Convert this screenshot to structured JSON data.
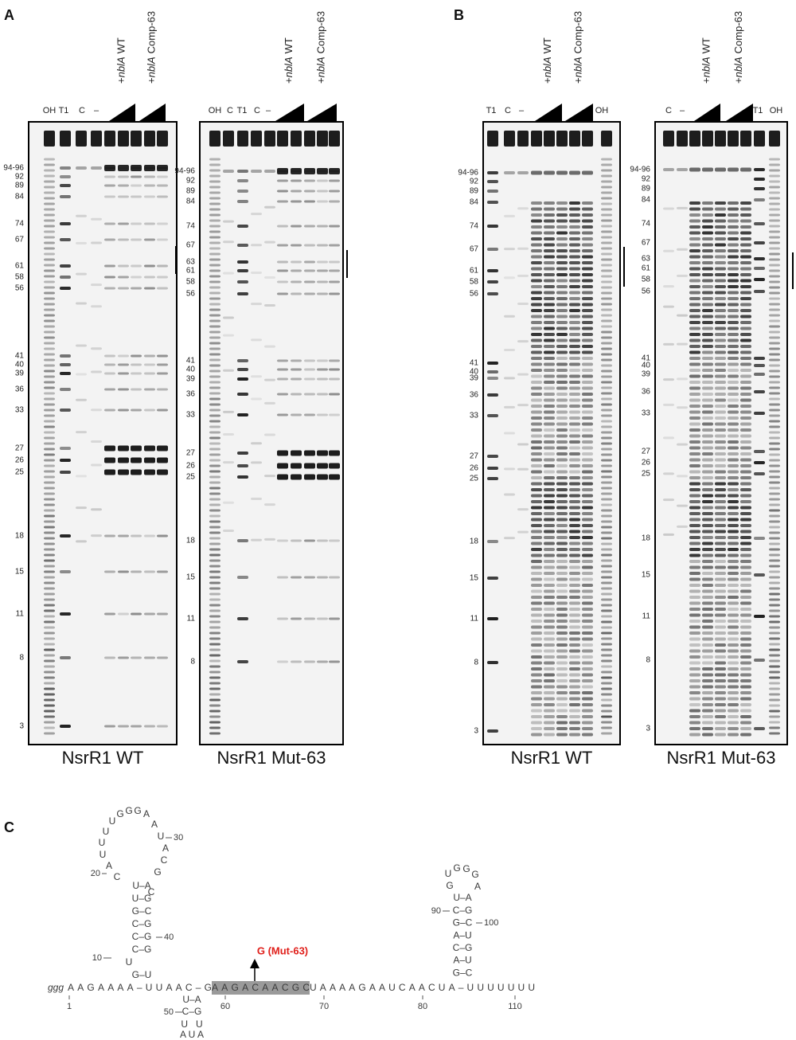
{
  "figure": {
    "panels": [
      {
        "letter": "A",
        "gels": [
          {
            "caption": "NsrR1 WT",
            "lanes": [
              "OH",
              "T1",
              "C",
              "–",
              {
                "prefix": "+",
                "gene": "nblA",
                "suffix": "WT"
              },
              {
                "prefix": "+",
                "gene": "nblA",
                "suffix": "Comp-63"
              }
            ],
            "markers": [
              "94-96",
              "92",
              "89",
              "84",
              "74",
              "67",
              "61",
              "58",
              "56",
              "41",
              "40",
              "39",
              "36",
              "33",
              "27",
              "26",
              "25",
              "18",
              "15",
              "11",
              "8",
              "3"
            ]
          },
          {
            "caption": "NsrR1 Mut-63",
            "lanes": [
              "OH",
              "C",
              "T1",
              "C",
              "–",
              {
                "prefix": "+",
                "gene": "nblA",
                "suffix": "WT"
              },
              {
                "prefix": "+",
                "gene": "nblA",
                "suffix": "Comp-63"
              }
            ],
            "markers": [
              "94-96",
              "92",
              "89",
              "84",
              "74",
              "67",
              {
                "label": "63",
                "color": "#e0201b"
              },
              "61",
              "58",
              "56",
              "41",
              "40",
              "39",
              "36",
              "33",
              "27",
              "26",
              "25",
              "18",
              "15",
              "11",
              "8"
            ]
          }
        ]
      },
      {
        "letter": "B",
        "gels": [
          {
            "caption": "NsrR1 WT",
            "lanes": [
              "T1",
              "C",
              "–",
              {
                "prefix": "+",
                "gene": "nblA",
                "suffix": "WT"
              },
              {
                "prefix": "+",
                "gene": "nblA",
                "suffix": "Comp-63"
              },
              "OH"
            ],
            "markers": [
              "94-96",
              "92",
              "89",
              "84",
              "74",
              "67",
              "61",
              "58",
              "56",
              "41",
              "40",
              "39",
              "36",
              "33",
              "27",
              "26",
              "25",
              "18",
              "15",
              "11",
              "8",
              "3"
            ]
          },
          {
            "caption": "NsrR1 Mut-63",
            "lanes": [
              "C",
              "–",
              {
                "prefix": "+",
                "gene": "nblA",
                "suffix": "WT"
              },
              {
                "prefix": "+",
                "gene": "nblA",
                "suffix": "Comp-63"
              },
              "T1",
              "OH"
            ],
            "markers": [
              "94-96",
              "92",
              "89",
              "84",
              "74",
              "67",
              {
                "label": "63",
                "color": "#e0201b"
              },
              "61",
              "58",
              "56",
              "41",
              "40",
              "39",
              "36",
              "33",
              "27",
              "26",
              "25",
              "18",
              "15",
              "11",
              "8",
              "3"
            ]
          }
        ]
      }
    ],
    "panel_c": {
      "letter": "C",
      "five_prime": "ggg",
      "sequence": [
        "AAGAAAA–UUAAC–G",
        "AAGACAACGC",
        "UAAAAGAAUCAACUA–UUUUUUU"
      ],
      "mutation": "G (Mut-63)",
      "numbers": [
        "1",
        "10",
        "20",
        "30",
        "40",
        "50",
        "60",
        "70",
        "80",
        "90",
        "100",
        "110"
      ],
      "hairpin_1": {
        "loop": [
          "C",
          "A",
          "U",
          "U",
          "U",
          "U",
          "G",
          "G",
          "G",
          "A",
          "A",
          "U",
          "A",
          "C",
          "G",
          "C"
        ],
        "stem": [
          "U–A",
          "U–G",
          "G–C",
          "C–G",
          "C–G",
          "C–G",
          "U",
          "G–U"
        ]
      },
      "hairpin_2": {
        "loop": [
          "G",
          "U",
          "G",
          "G",
          "G",
          "A"
        ],
        "stem": [
          "U–A",
          "C–G",
          "G–C",
          "A–U",
          "C–G",
          "A–U",
          "G–C"
        ]
      },
      "hairpin_3": {
        "stem": [
          "U–A",
          "C–G",
          "U   U",
          "A U A"
        ]
      }
    }
  }
}
